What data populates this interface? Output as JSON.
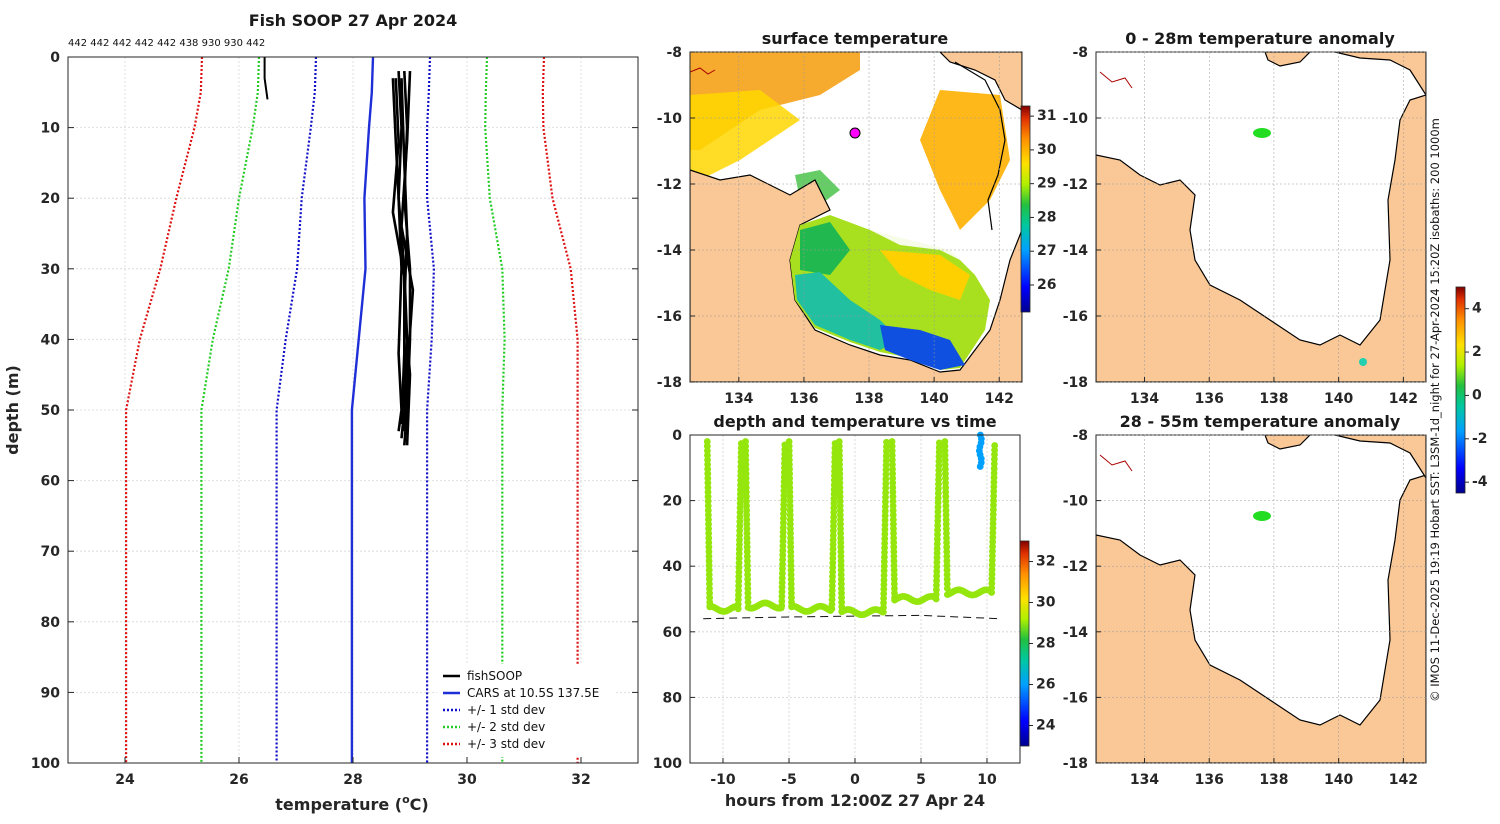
{
  "colors": {
    "fishsoop": "#000000",
    "cars": "#1f2fd8",
    "std1": "#1010c8",
    "std2": "#22cc22",
    "std3": "#dd1111",
    "land": "#f9c896",
    "coast": "#000000"
  },
  "chart_data": [
    {
      "id": "profile",
      "type": "line",
      "title": "Fish SOOP 27 Apr 2024",
      "xlabel_main": "temperature (",
      "xlabel_sup": "o",
      "xlabel_end": "C)",
      "ylabel": "depth (m)",
      "xlim": [
        23,
        33
      ],
      "ylim": [
        0,
        100
      ],
      "y_reversed": true,
      "xticks": [
        24,
        26,
        28,
        30,
        32
      ],
      "yticks": [
        0,
        10,
        20,
        30,
        40,
        50,
        60,
        70,
        80,
        90,
        100
      ],
      "top_label": "442 442 442 442 442 438 930 930 442",
      "depth_levels": [
        0,
        5,
        10,
        20,
        30,
        40,
        50,
        100
      ],
      "cars_mean": [
        28.35,
        28.33,
        28.28,
        28.2,
        28.22,
        28.1,
        27.98,
        27.98
      ],
      "std1": [
        1.0,
        1.0,
        1.02,
        1.1,
        1.2,
        1.28,
        1.32,
        1.32
      ],
      "series_legend": [
        {
          "name": "fishSOOP",
          "style": "solid-black"
        },
        {
          "name": "CARS at 10.5S 137.5E",
          "style": "solid-blue"
        },
        {
          "name": "+/- 1 std dev",
          "style": "dot-blue"
        },
        {
          "name": "+/- 2 std dev",
          "style": "dot-green"
        },
        {
          "name": "+/- 3 std dev",
          "style": "dot-red"
        }
      ],
      "fishsoop_profiles": [
        [
          [
            28.8,
            2
          ],
          [
            28.85,
            10
          ],
          [
            28.8,
            20
          ],
          [
            28.9,
            30
          ],
          [
            28.95,
            40
          ],
          [
            28.9,
            50
          ],
          [
            28.85,
            54
          ]
        ],
        [
          [
            28.9,
            2
          ],
          [
            28.95,
            10
          ],
          [
            28.9,
            20
          ],
          [
            29.0,
            30
          ],
          [
            29.0,
            40
          ],
          [
            28.95,
            50
          ],
          [
            28.9,
            55
          ]
        ],
        [
          [
            28.75,
            3
          ],
          [
            28.8,
            12
          ],
          [
            28.7,
            22
          ],
          [
            28.9,
            31
          ],
          [
            28.9,
            42
          ],
          [
            28.85,
            52
          ]
        ],
        [
          [
            29.0,
            2
          ],
          [
            28.95,
            12
          ],
          [
            28.85,
            24
          ],
          [
            29.05,
            33
          ],
          [
            28.95,
            45
          ],
          [
            28.9,
            53
          ]
        ],
        [
          [
            28.85,
            3
          ],
          [
            28.9,
            15
          ],
          [
            28.95,
            25
          ],
          [
            28.9,
            35
          ],
          [
            29.0,
            45
          ],
          [
            28.95,
            55
          ]
        ],
        [
          [
            28.7,
            3
          ],
          [
            28.75,
            12
          ],
          [
            28.8,
            20
          ],
          [
            28.85,
            30
          ],
          [
            28.8,
            42
          ],
          [
            28.85,
            50
          ],
          [
            28.8,
            53
          ]
        ],
        [
          [
            26.45,
            0
          ],
          [
            26.45,
            3
          ],
          [
            26.5,
            6
          ]
        ]
      ]
    },
    {
      "id": "timeseries",
      "type": "scatter",
      "title": "depth and temperature vs time",
      "xlabel": "hours from 12:00Z 27 Apr 24",
      "xlim": [
        -12.5,
        12.5
      ],
      "ylim": [
        0,
        100
      ],
      "y_reversed": true,
      "xticks": [
        -10,
        -5,
        0,
        5,
        10
      ],
      "yticks": [
        0,
        20,
        40,
        60,
        80,
        100
      ],
      "bottom_depth_line": [
        [
          -11.5,
          56
        ],
        [
          -5,
          55.5
        ],
        [
          0,
          55.2
        ],
        [
          5,
          55
        ],
        [
          11,
          56
        ]
      ],
      "casts": [
        {
          "t_start": -11.2,
          "t_bottom": -11.0,
          "t_end": -8.6,
          "bottom": 53
        },
        {
          "t_start": -8.3,
          "t_bottom": -8.1,
          "t_end": -5.3,
          "bottom": 52
        },
        {
          "t_start": -5.0,
          "t_bottom": -4.8,
          "t_end": -1.5,
          "bottom": 53
        },
        {
          "t_start": -1.2,
          "t_bottom": -1.0,
          "t_end": 2.4,
          "bottom": 54
        },
        {
          "t_start": 2.8,
          "t_bottom": 3.0,
          "t_end": 6.4,
          "bottom": 50
        },
        {
          "t_start": 6.8,
          "t_bottom": 7.0,
          "t_end": 10.6,
          "bottom": 48
        }
      ],
      "colorbar_ticks": [
        24,
        26,
        28,
        30,
        32
      ],
      "colorbar_range": [
        23,
        33
      ]
    },
    {
      "id": "sst",
      "type": "heatmap",
      "title": "surface temperature",
      "xticks": [
        134,
        136,
        138,
        140,
        142
      ],
      "yticks": [
        -8,
        -10,
        -12,
        -14,
        -16,
        -18
      ],
      "xlim": [
        132.5,
        142.7
      ],
      "ylim": [
        -18,
        -8
      ],
      "colorbar_ticks": [
        26,
        27,
        28,
        29,
        30,
        31
      ],
      "colorbar_range": [
        25.2,
        31.3
      ]
    },
    {
      "id": "anom_0_28",
      "type": "heatmap",
      "title": "0 - 28m temperature anomaly",
      "xticks": [
        134,
        136,
        138,
        140,
        142
      ],
      "yticks": [
        -8,
        -10,
        -12,
        -14,
        -16,
        -18
      ],
      "xlim": [
        132.5,
        142.7
      ],
      "ylim": [
        -18,
        -8
      ]
    },
    {
      "id": "anom_28_55",
      "type": "heatmap",
      "title": "28 - 55m temperature anomaly",
      "xticks": [
        134,
        136,
        138,
        140,
        142
      ],
      "yticks": [
        -8,
        -10,
        -12,
        -14,
        -16,
        -18
      ],
      "xlim": [
        132.5,
        142.7
      ],
      "ylim": [
        -18,
        -8
      ]
    }
  ],
  "anomaly_colorbar": {
    "ticks": [
      -4,
      -2,
      0,
      2,
      4
    ],
    "range": [
      -4.5,
      5
    ]
  },
  "credit": "© IMOS 11-Dec-2025 19:19 Hobart SST: L3SM-1d_night for 27-Apr-2024 15:20Z isobaths: 200  1000m"
}
